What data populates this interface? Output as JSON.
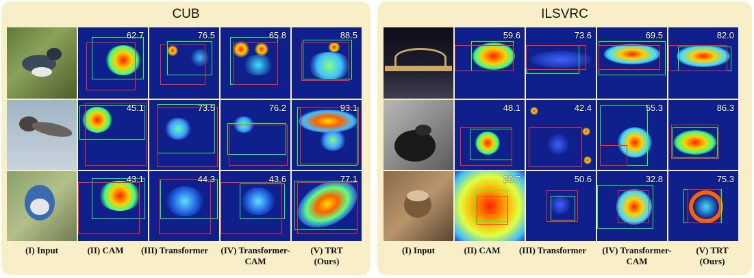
{
  "panels": [
    {
      "title": "CUB",
      "column_labels": [
        {
          "line1": "(I) Input",
          "line2": ""
        },
        {
          "line1": "(II) CAM",
          "line2": ""
        },
        {
          "line1": "(III) Transformer",
          "line2": ""
        },
        {
          "line1": "(IV) Transformer-",
          "line2": "CAM"
        },
        {
          "line1": "(V) TRT",
          "line2": "(Ours)"
        }
      ],
      "rows": [
        {
          "input": "belted kingfisher photo",
          "scores": [
            "62.7",
            "76.5",
            "65.8",
            "88.5"
          ]
        },
        {
          "input": "swallow in flight photo",
          "scores": [
            "45.1",
            "73.5",
            "76.2",
            "93.1"
          ]
        },
        {
          "input": "blue jay photo",
          "scores": [
            "43.1",
            "44.3",
            "43.6",
            "77.1"
          ]
        }
      ]
    },
    {
      "title": "ILSVRC",
      "column_labels": [
        {
          "line1": "(I) Input",
          "line2": ""
        },
        {
          "line1": "(II) CAM",
          "line2": ""
        },
        {
          "line1": "(III) Transformer",
          "line2": ""
        },
        {
          "line1": "(IV) Transformer-",
          "line2": "CAM"
        },
        {
          "line1": "(V) TRT",
          "line2": "(Ours)"
        }
      ],
      "rows": [
        {
          "input": "harbour bridge at night photo",
          "scores": [
            "59.6",
            "73.6",
            "69.5",
            "82.0"
          ]
        },
        {
          "input": "triceratops figure photo",
          "scores": [
            "48.1",
            "42.4",
            "55.3",
            "86.3"
          ]
        },
        {
          "input": "acorn photo",
          "scores": [
            "20.7",
            "50.6",
            "32.8",
            "75.3"
          ]
        }
      ]
    }
  ],
  "colors": {
    "panel_bg": "#f8eec7",
    "ground_truth_box": "#ff2a2a",
    "predicted_box": "#2aff4a",
    "heatmap_cold": "#0f1f8c",
    "heatmap_hot": "#ff2000"
  }
}
